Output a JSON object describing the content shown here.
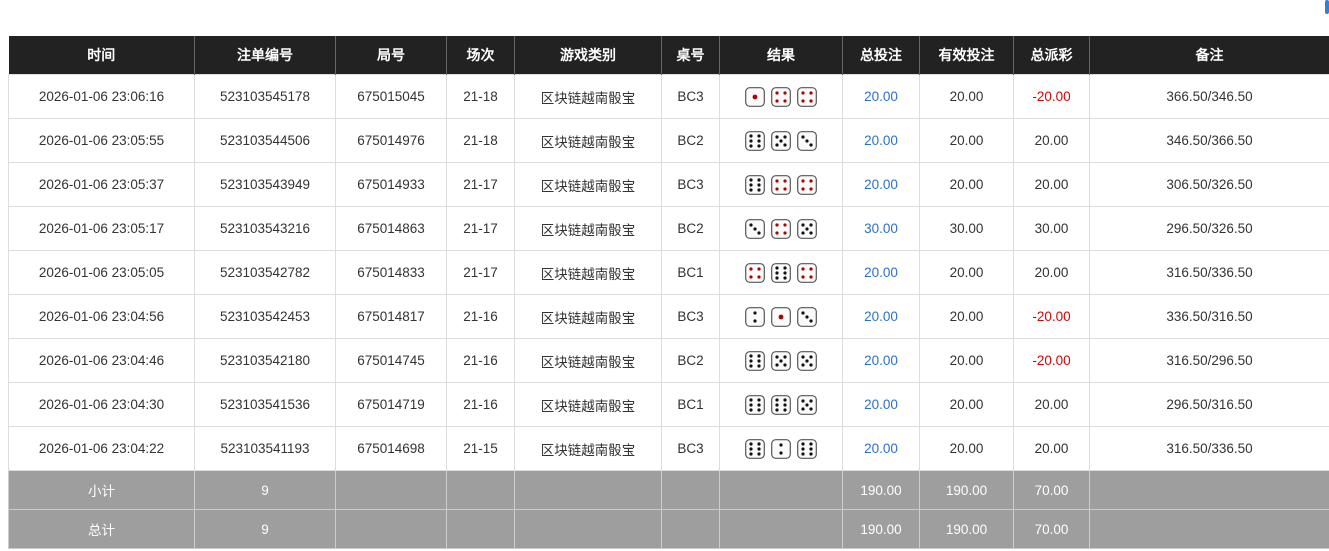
{
  "columns": [
    "时间",
    "注单编号",
    "局号",
    "场次",
    "游戏类别",
    "桌号",
    "结果",
    "总投注",
    "有效投注",
    "总派彩",
    "备注"
  ],
  "rows": [
    {
      "time": "2026-01-06 23:06:16",
      "bet_id": "523103545178",
      "round": "675015045",
      "session": "21-18",
      "game": "区块链越南骰宝",
      "table": "BC3",
      "dice": [
        1,
        4,
        4
      ],
      "total_bet": "20.00",
      "valid_bet": "20.00",
      "payout": "-20.00",
      "note": "366.50/346.50"
    },
    {
      "time": "2026-01-06 23:05:55",
      "bet_id": "523103544506",
      "round": "675014976",
      "session": "21-18",
      "game": "区块链越南骰宝",
      "table": "BC2",
      "dice": [
        6,
        5,
        3
      ],
      "total_bet": "20.00",
      "valid_bet": "20.00",
      "payout": "20.00",
      "note": "346.50/366.50"
    },
    {
      "time": "2026-01-06 23:05:37",
      "bet_id": "523103543949",
      "round": "675014933",
      "session": "21-17",
      "game": "区块链越南骰宝",
      "table": "BC3",
      "dice": [
        6,
        4,
        4
      ],
      "total_bet": "20.00",
      "valid_bet": "20.00",
      "payout": "20.00",
      "note": "306.50/326.50"
    },
    {
      "time": "2026-01-06 23:05:17",
      "bet_id": "523103543216",
      "round": "675014863",
      "session": "21-17",
      "game": "区块链越南骰宝",
      "table": "BC2",
      "dice": [
        3,
        4,
        5
      ],
      "total_bet": "30.00",
      "valid_bet": "30.00",
      "payout": "30.00",
      "note": "296.50/326.50"
    },
    {
      "time": "2026-01-06 23:05:05",
      "bet_id": "523103542782",
      "round": "675014833",
      "session": "21-17",
      "game": "区块链越南骰宝",
      "table": "BC1",
      "dice": [
        4,
        6,
        4
      ],
      "total_bet": "20.00",
      "valid_bet": "20.00",
      "payout": "20.00",
      "note": "316.50/336.50"
    },
    {
      "time": "2026-01-06 23:04:56",
      "bet_id": "523103542453",
      "round": "675014817",
      "session": "21-16",
      "game": "区块链越南骰宝",
      "table": "BC3",
      "dice": [
        2,
        1,
        3
      ],
      "total_bet": "20.00",
      "valid_bet": "20.00",
      "payout": "-20.00",
      "note": "336.50/316.50"
    },
    {
      "time": "2026-01-06 23:04:46",
      "bet_id": "523103542180",
      "round": "675014745",
      "session": "21-16",
      "game": "区块链越南骰宝",
      "table": "BC2",
      "dice": [
        6,
        5,
        5
      ],
      "total_bet": "20.00",
      "valid_bet": "20.00",
      "payout": "-20.00",
      "note": "316.50/296.50"
    },
    {
      "time": "2026-01-06 23:04:30",
      "bet_id": "523103541536",
      "round": "675014719",
      "session": "21-16",
      "game": "区块链越南骰宝",
      "table": "BC1",
      "dice": [
        6,
        6,
        5
      ],
      "total_bet": "20.00",
      "valid_bet": "20.00",
      "payout": "20.00",
      "note": "296.50/316.50"
    },
    {
      "time": "2026-01-06 23:04:22",
      "bet_id": "523103541193",
      "round": "675014698",
      "session": "21-15",
      "game": "区块链越南骰宝",
      "table": "BC3",
      "dice": [
        6,
        2,
        6
      ],
      "total_bet": "20.00",
      "valid_bet": "20.00",
      "payout": "20.00",
      "note": "316.50/336.50"
    }
  ],
  "summary": [
    {
      "label": "小计",
      "count": "9",
      "total_bet": "190.00",
      "valid_bet": "190.00",
      "payout": "70.00"
    },
    {
      "label": "总计",
      "count": "9",
      "total_bet": "190.00",
      "valid_bet": "190.00",
      "payout": "70.00"
    }
  ],
  "colors": {
    "header": "#222222",
    "link_blue": "#2a6fd6",
    "negative_red": "#dd0000",
    "summary_bg": "#9e9e9e",
    "die_red_pip": "#b00000"
  }
}
